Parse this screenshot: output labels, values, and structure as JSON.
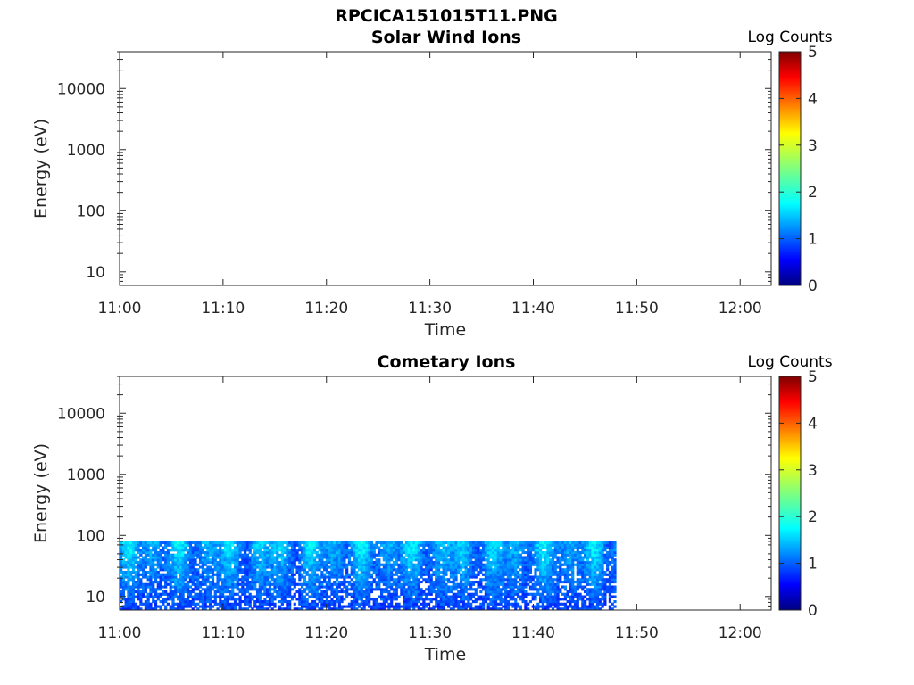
{
  "figure_title": "RPCICA151015T11.PNG",
  "chart_data": [
    {
      "type": "heatmap",
      "title": "Solar Wind Ions",
      "xlabel": "Time",
      "ylabel": "Energy (eV)",
      "x_ticks": [
        "11:00",
        "11:10",
        "11:20",
        "11:30",
        "11:40",
        "11:50",
        "12:00"
      ],
      "xlim": [
        "11:00",
        "12:03"
      ],
      "y_scale": "log",
      "y_ticks": [
        "10",
        "100",
        "1000",
        "10000"
      ],
      "ylim": [
        6,
        40000
      ],
      "colorbar": {
        "label": "Log Counts",
        "ticks": [
          "0",
          "1",
          "2",
          "3",
          "4",
          "5"
        ],
        "range": [
          0,
          5
        ],
        "colormap": "jet"
      },
      "data": []
    },
    {
      "type": "heatmap",
      "title": "Cometary Ions",
      "xlabel": "Time",
      "ylabel": "Energy (eV)",
      "x_ticks": [
        "11:00",
        "11:10",
        "11:20",
        "11:30",
        "11:40",
        "11:50",
        "12:00"
      ],
      "xlim": [
        "11:00",
        "12:03"
      ],
      "y_scale": "log",
      "y_ticks": [
        "10",
        "100",
        "1000",
        "10000"
      ],
      "ylim": [
        6,
        40000
      ],
      "colorbar": {
        "label": "Log Counts",
        "ticks": [
          "0",
          "1",
          "2",
          "3",
          "4",
          "5"
        ],
        "range": [
          0,
          5
        ],
        "colormap": "jet"
      },
      "data_extent": {
        "time_start": "11:00",
        "time_end": "11:48",
        "energy_min_eV": 6,
        "energy_max_eV": 80,
        "typical_log_counts": [
          0.3,
          2.0
        ]
      }
    }
  ]
}
